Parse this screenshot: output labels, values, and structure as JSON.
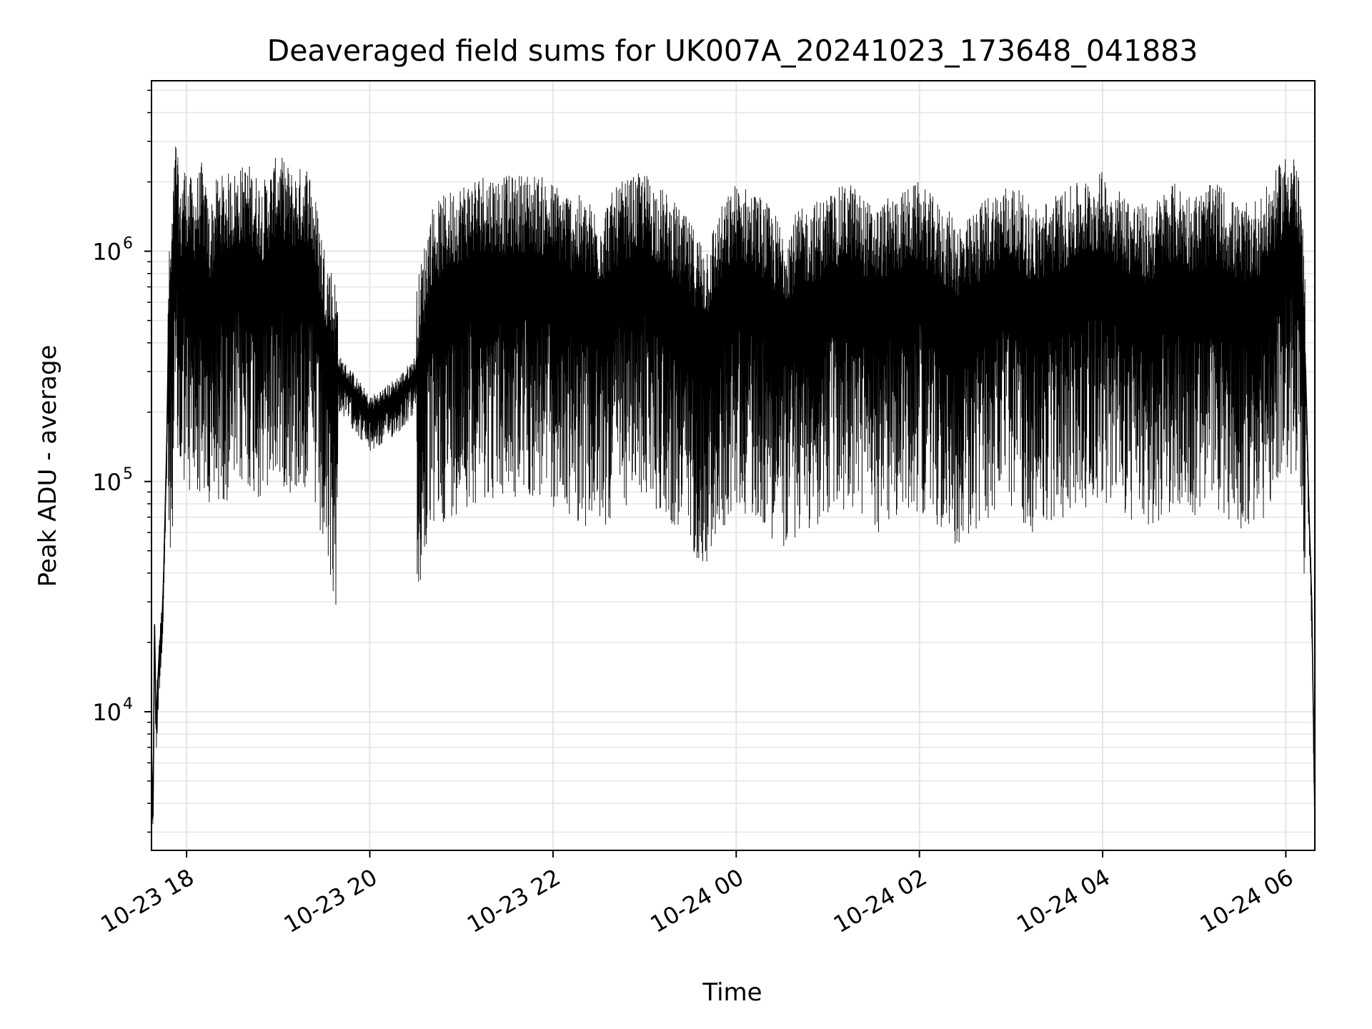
{
  "chart_data": {
    "type": "line",
    "title": "Deaveraged field sums for UK007A_20241023_173648_041883",
    "xlabel": "Time",
    "ylabel": "Peak ADU - average",
    "yscale": "log",
    "xlim": [
      "2024-10-23 17:37",
      "2024-10-24 06:19"
    ],
    "ylim": [
      2500,
      5500000
    ],
    "grid": true,
    "line_color": "#000000",
    "x_ticks": [
      {
        "value": "2024-10-23 18:00",
        "label": "10-23 18"
      },
      {
        "value": "2024-10-23 20:00",
        "label": "10-23 20"
      },
      {
        "value": "2024-10-23 22:00",
        "label": "10-23 22"
      },
      {
        "value": "2024-10-24 00:00",
        "label": "10-24 00"
      },
      {
        "value": "2024-10-24 02:00",
        "label": "10-24 02"
      },
      {
        "value": "2024-10-24 04:00",
        "label": "10-24 04"
      },
      {
        "value": "2024-10-24 06:00",
        "label": "10-24 06"
      }
    ],
    "y_ticks": [
      {
        "value": 10000,
        "base": "10",
        "exp": "4"
      },
      {
        "value": 100000,
        "base": "10",
        "exp": "5"
      },
      {
        "value": 1000000,
        "base": "10",
        "exp": "6"
      }
    ],
    "series": [
      {
        "name": "",
        "x": [
          "2024-10-23 17:37",
          "2024-10-23 17:38",
          "2024-10-23 17:39",
          "2024-10-23 17:40",
          "2024-10-23 17:42",
          "2024-10-23 17:44",
          "2024-10-23 17:45",
          "2024-10-23 17:47",
          "2024-10-23 17:48",
          "2024-10-23 17:50",
          "2024-10-23 17:53",
          "2024-10-23 17:56",
          "2024-10-23 17:58",
          "2024-10-23 18:00",
          "2024-10-23 18:05",
          "2024-10-23 18:10",
          "2024-10-23 18:15",
          "2024-10-23 18:20",
          "2024-10-23 18:30",
          "2024-10-23 18:40",
          "2024-10-23 18:50",
          "2024-10-23 19:00",
          "2024-10-23 19:10",
          "2024-10-23 19:20",
          "2024-10-23 19:30",
          "2024-10-23 19:40",
          "2024-10-23 19:50",
          "2024-10-23 20:00",
          "2024-10-23 20:10",
          "2024-10-23 20:20",
          "2024-10-23 20:30",
          "2024-10-23 20:40",
          "2024-10-23 20:50",
          "2024-10-23 21:00",
          "2024-10-23 21:15",
          "2024-10-23 21:30",
          "2024-10-23 21:45",
          "2024-10-23 22:00",
          "2024-10-23 22:15",
          "2024-10-23 22:30",
          "2024-10-23 22:45",
          "2024-10-23 23:00",
          "2024-10-23 23:15",
          "2024-10-23 23:30",
          "2024-10-23 23:40",
          "2024-10-23 23:50",
          "2024-10-24 00:00",
          "2024-10-24 00:15",
          "2024-10-24 00:30",
          "2024-10-24 00:45",
          "2024-10-24 01:00",
          "2024-10-24 01:15",
          "2024-10-24 01:30",
          "2024-10-24 01:45",
          "2024-10-24 02:00",
          "2024-10-24 02:15",
          "2024-10-24 02:30",
          "2024-10-24 02:45",
          "2024-10-24 03:00",
          "2024-10-24 03:15",
          "2024-10-24 03:30",
          "2024-10-24 03:45",
          "2024-10-24 04:00",
          "2024-10-24 04:15",
          "2024-10-24 04:30",
          "2024-10-24 04:45",
          "2024-10-24 05:00",
          "2024-10-24 05:15",
          "2024-10-24 05:30",
          "2024-10-24 05:45",
          "2024-10-24 06:00",
          "2024-10-24 06:05",
          "2024-10-24 06:10",
          "2024-10-24 06:13",
          "2024-10-24 06:15",
          "2024-10-24 06:17",
          "2024-10-24 06:19"
        ],
        "y": [
          7000,
          3500,
          24000,
          9000,
          18000,
          26000,
          40000,
          150000,
          400000,
          600000,
          1500000,
          800000,
          1200000,
          1000000,
          900000,
          1100000,
          700000,
          950000,
          1000000,
          1100000,
          900000,
          1200000,
          1000000,
          1100000,
          500000,
          300000,
          250000,
          200000,
          220000,
          250000,
          300000,
          700000,
          800000,
          900000,
          1000000,
          950000,
          1000000,
          900000,
          800000,
          700000,
          900000,
          1000000,
          800000,
          600000,
          500000,
          700000,
          900000,
          800000,
          600000,
          700000,
          800000,
          900000,
          700000,
          800000,
          900000,
          700000,
          600000,
          800000,
          900000,
          700000,
          800000,
          900000,
          1000000,
          800000,
          700000,
          900000,
          800000,
          900000,
          700000,
          800000,
          1200000,
          1300000,
          800000,
          300000,
          80000,
          30000,
          3500
        ]
      }
    ]
  }
}
